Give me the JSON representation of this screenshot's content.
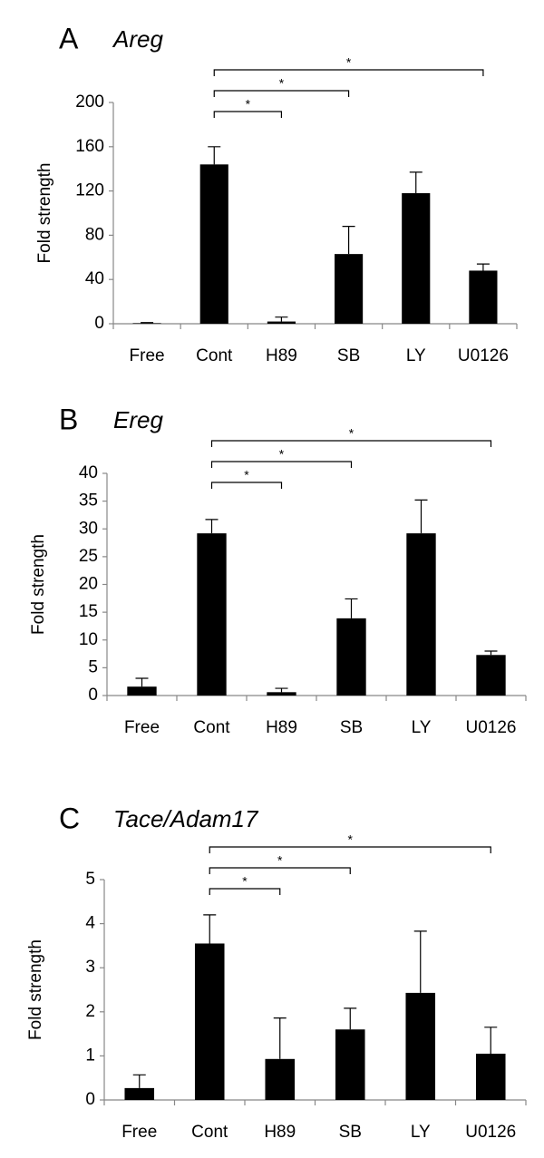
{
  "chart_data": [
    {
      "type": "bar",
      "panel_label": "A",
      "title": "Areg",
      "ylabel": "Fold strength",
      "categories": [
        "Free",
        "Cont",
        "H89",
        "SB",
        "LY",
        "U0126"
      ],
      "values": [
        0.5,
        144,
        2,
        63,
        118,
        48
      ],
      "errors": [
        0.5,
        16,
        4,
        25,
        19,
        6
      ],
      "color": "#000000",
      "ylim": [
        0,
        200
      ],
      "yticks": [
        0,
        40,
        80,
        120,
        160,
        200
      ],
      "significance": {
        "label": "*",
        "pairs": [
          [
            "Cont",
            "H89"
          ],
          [
            "Cont",
            "SB"
          ],
          [
            "Cont",
            "U0126"
          ]
        ]
      }
    },
    {
      "type": "bar",
      "panel_label": "B",
      "title": "Ereg",
      "ylabel": "Fold strength",
      "categories": [
        "Free",
        "Cont",
        "H89",
        "SB",
        "LY",
        "U0126"
      ],
      "values": [
        1.6,
        29.2,
        0.6,
        13.9,
        29.2,
        7.3
      ],
      "errors": [
        1.5,
        2.5,
        0.7,
        3.5,
        6,
        0.7
      ],
      "color": "#000000",
      "ylim": [
        0,
        40
      ],
      "yticks": [
        0,
        5,
        10,
        15,
        20,
        25,
        30,
        35,
        40
      ],
      "significance": {
        "label": "*",
        "pairs": [
          [
            "Cont",
            "H89"
          ],
          [
            "Cont",
            "SB"
          ],
          [
            "Cont",
            "U0126"
          ]
        ]
      }
    },
    {
      "type": "bar",
      "panel_label": "C",
      "title": "Tace/Adam17",
      "ylabel": "Fold strength",
      "categories": [
        "Free",
        "Cont",
        "H89",
        "SB",
        "LY",
        "U0126"
      ],
      "values": [
        0.27,
        3.55,
        0.93,
        1.6,
        2.43,
        1.05
      ],
      "errors": [
        0.3,
        0.65,
        0.93,
        0.48,
        1.4,
        0.6
      ],
      "color": "#000000",
      "ylim": [
        0,
        5
      ],
      "yticks": [
        0,
        1,
        2,
        3,
        4,
        5
      ],
      "significance": {
        "label": "*",
        "pairs": [
          [
            "Cont",
            "H89"
          ],
          [
            "Cont",
            "SB"
          ],
          [
            "Cont",
            "U0126"
          ]
        ]
      }
    }
  ]
}
